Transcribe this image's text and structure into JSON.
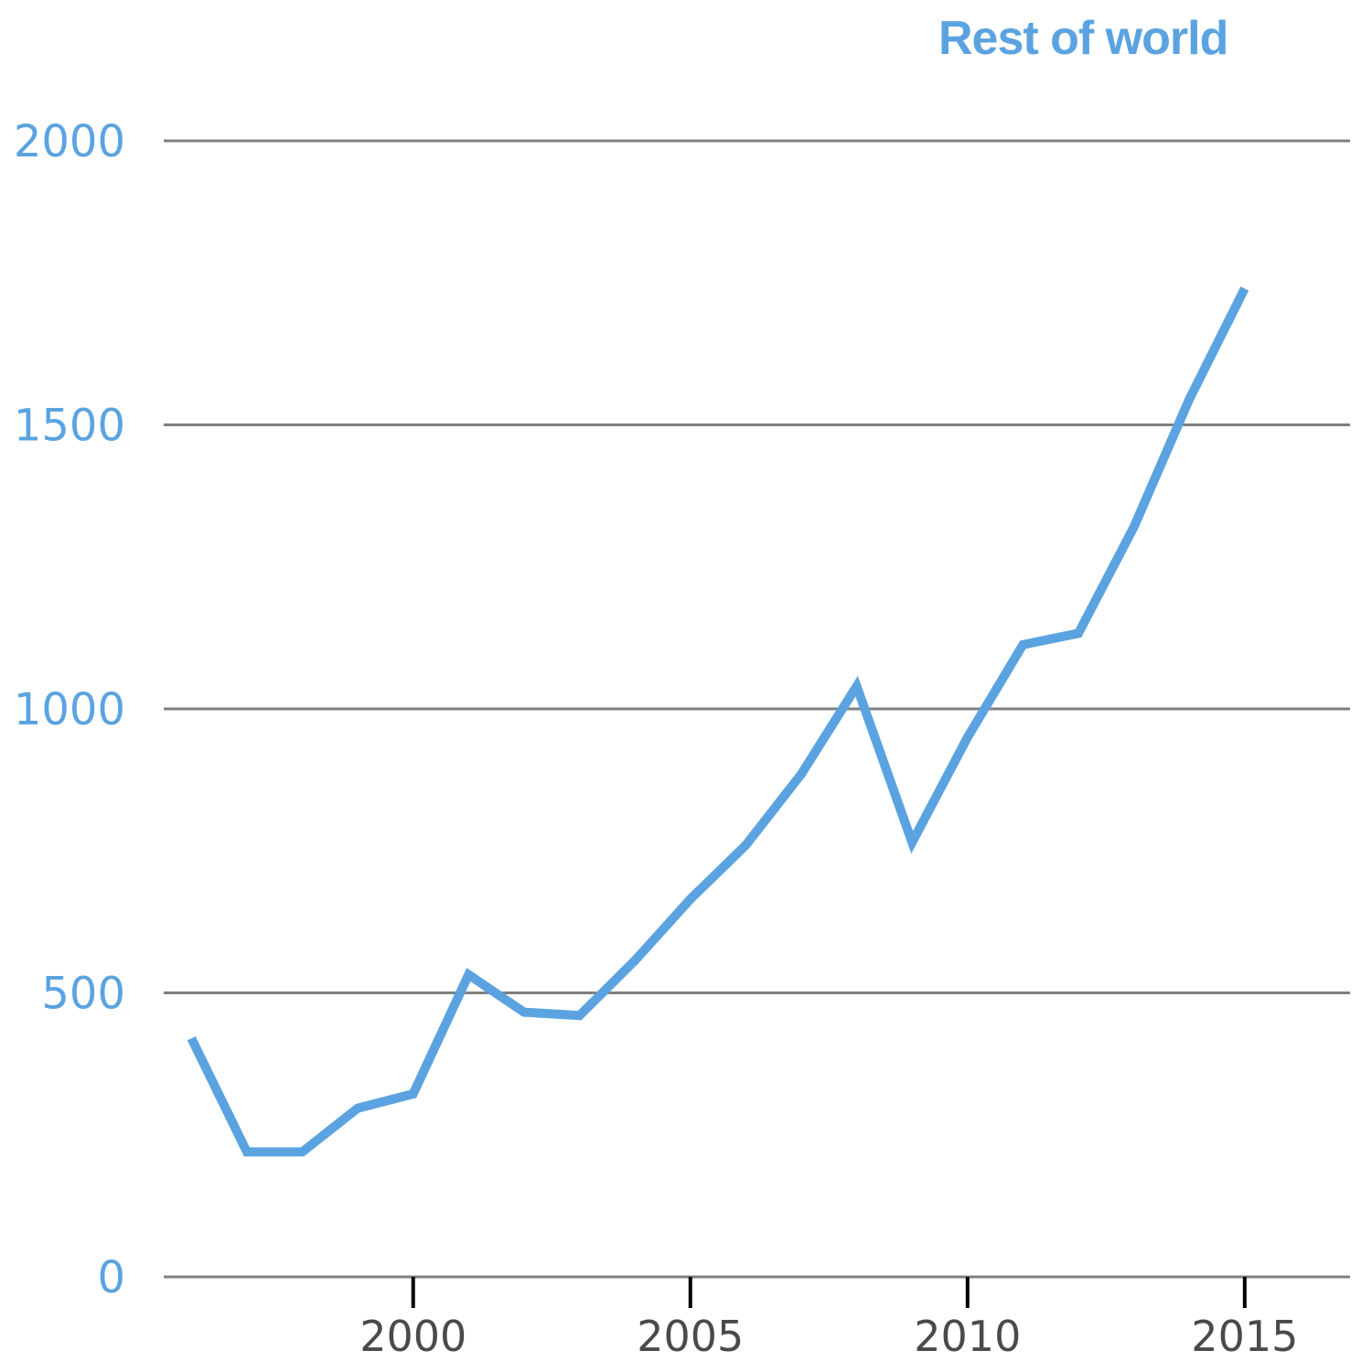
{
  "colors": {
    "series": "#5ba3e0",
    "grid": "#7f7f7f",
    "axis": "#000000",
    "xtick_text": "#4a4a4a"
  },
  "chart_data": {
    "type": "line",
    "title": "",
    "xlabel": "",
    "ylabel": "",
    "xlim": [
      1995.5,
      2016.9
    ],
    "ylim": [
      0,
      2000
    ],
    "yticks": [
      0,
      500,
      1000,
      1500,
      2000
    ],
    "ytick_labels": [
      "0",
      "500",
      "1000",
      "1500",
      "2000"
    ],
    "xticks": [
      2000,
      2005,
      2010,
      2015
    ],
    "xtick_labels": [
      "2000",
      "2005",
      "2010",
      "2015"
    ],
    "grid": "horizontal",
    "series": [
      {
        "name": "Rest of world",
        "x": [
          1996,
          1997,
          1998,
          1999,
          2000,
          2001,
          2002,
          2003,
          2004,
          2005,
          2006,
          2007,
          2008,
          2009,
          2010,
          2011,
          2012,
          2013,
          2014,
          2015
        ],
        "values": [
          420,
          220,
          220,
          297,
          322,
          532,
          466,
          460,
          557,
          665,
          760,
          885,
          1040,
          765,
          950,
          1113,
          1133,
          1320,
          1545,
          1740
        ]
      }
    ]
  }
}
